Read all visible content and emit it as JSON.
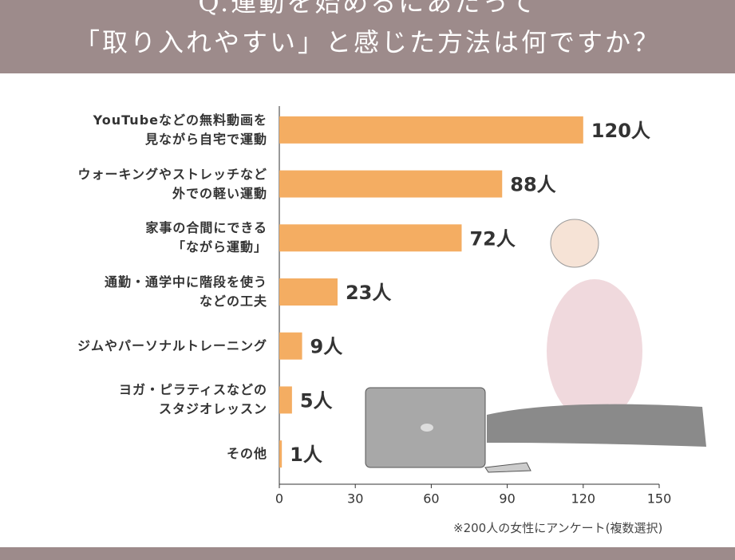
{
  "chart_data": {
    "type": "barh",
    "title": "Q.運動を始めるにあたって\n「取り入れやすい」と感じた方法は何ですか？",
    "categories": [
      "YouTubeなどの無料動画を\n見ながら自宅で運動",
      "ウォーキングやストレッチなど\n外での軽い運動",
      "家事の合間にできる\n「ながら運動」",
      "通勤・通学中に階段を使う\nなどの工夫",
      "ジムやパーソナルトレーニング",
      "ヨガ・ピラティスなどの\nスタジオレッスン",
      "その他"
    ],
    "values": [
      120,
      88,
      72,
      23,
      9,
      5,
      1
    ],
    "value_labels": [
      "120人",
      "88人",
      "72人",
      "23人",
      "9人",
      "5人",
      "1人"
    ],
    "color": "#f4ad62",
    "xlim": [
      0,
      150
    ],
    "xticks": [
      0,
      30,
      60,
      90,
      120,
      150
    ],
    "note": "※200人の女性にアンケート(複数選択)"
  }
}
